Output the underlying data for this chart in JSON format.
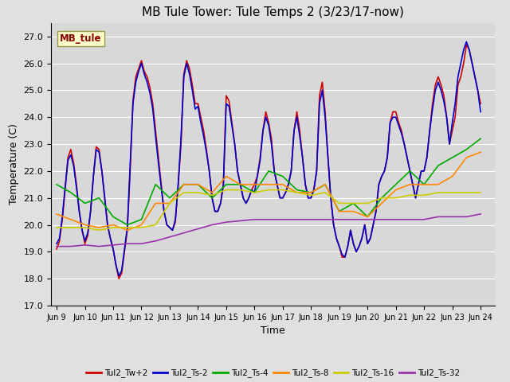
{
  "title": "MB Tule Tower: Tule Temps 2 (3/23/17-now)",
  "xlabel": "Time",
  "ylabel": "Temperature (C)",
  "ylim": [
    17.0,
    27.5
  ],
  "yticks": [
    17.0,
    18.0,
    19.0,
    20.0,
    21.0,
    22.0,
    23.0,
    24.0,
    25.0,
    26.0,
    27.0
  ],
  "xlim_min": -0.2,
  "xlim_max": 15.5,
  "xtick_labels": [
    "Jun 9",
    "Jun 10",
    "Jun 11",
    "Jun 12",
    "Jun 13",
    "Jun 14",
    "Jun 15",
    "Jun 16",
    "Jun 17",
    "Jun 18",
    "Jun 19",
    "Jun 20",
    "Jun 21",
    "Jun 22",
    "Jun 23",
    "Jun 24"
  ],
  "xtick_positions": [
    0,
    1,
    2,
    3,
    4,
    5,
    6,
    7,
    8,
    9,
    10,
    11,
    12,
    13,
    14,
    15
  ],
  "fig_bg": "#e0e0e0",
  "ax_bg": "#d8d8d8",
  "grid_color": "#ffffff",
  "series": [
    {
      "label": "Tul2_Tw+2",
      "color": "#cc0000",
      "lw": 1.2,
      "x": [
        0.0,
        0.1,
        0.2,
        0.3,
        0.4,
        0.5,
        0.6,
        0.7,
        0.8,
        0.9,
        1.0,
        1.1,
        1.2,
        1.3,
        1.4,
        1.5,
        1.6,
        1.7,
        1.8,
        1.9,
        2.0,
        2.1,
        2.2,
        2.3,
        2.4,
        2.5,
        2.6,
        2.7,
        2.8,
        2.9,
        3.0,
        3.1,
        3.2,
        3.3,
        3.4,
        3.5,
        3.6,
        3.7,
        3.8,
        3.9,
        4.0,
        4.1,
        4.2,
        4.3,
        4.4,
        4.5,
        4.6,
        4.7,
        4.8,
        4.9,
        5.0,
        5.1,
        5.2,
        5.3,
        5.4,
        5.5,
        5.6,
        5.7,
        5.8,
        5.9,
        6.0,
        6.1,
        6.2,
        6.3,
        6.4,
        6.5,
        6.6,
        6.7,
        6.8,
        6.9,
        7.0,
        7.1,
        7.2,
        7.3,
        7.4,
        7.5,
        7.6,
        7.7,
        7.8,
        7.9,
        8.0,
        8.1,
        8.2,
        8.3,
        8.4,
        8.5,
        8.6,
        8.7,
        8.8,
        8.9,
        9.0,
        9.1,
        9.2,
        9.3,
        9.4,
        9.5,
        9.6,
        9.7,
        9.8,
        9.9,
        10.0,
        10.1,
        10.2,
        10.3,
        10.4,
        10.5,
        10.6,
        10.7,
        10.8,
        10.9,
        11.0,
        11.1,
        11.2,
        11.3,
        11.4,
        11.5,
        11.6,
        11.7,
        11.8,
        11.9,
        12.0,
        12.1,
        12.2,
        12.3,
        12.4,
        12.5,
        12.6,
        12.7,
        12.8,
        12.9,
        13.0,
        13.1,
        13.2,
        13.3,
        13.4,
        13.5,
        13.6,
        13.7,
        13.8,
        13.9,
        14.0,
        14.1,
        14.2,
        14.3,
        14.4,
        14.5,
        14.6,
        14.7,
        14.8,
        14.9,
        15.0
      ],
      "y": [
        19.1,
        19.4,
        20.2,
        21.3,
        22.5,
        22.8,
        22.3,
        21.5,
        20.5,
        19.8,
        19.3,
        19.6,
        20.5,
        21.8,
        22.9,
        22.8,
        22.0,
        21.0,
        20.0,
        19.5,
        19.1,
        18.5,
        18.0,
        18.2,
        19.0,
        19.8,
        22.0,
        24.6,
        25.5,
        25.8,
        26.1,
        25.7,
        25.5,
        25.1,
        24.5,
        23.5,
        22.5,
        21.5,
        20.5,
        20.0,
        19.9,
        19.8,
        20.1,
        21.5,
        23.0,
        25.6,
        26.1,
        25.8,
        25.2,
        24.5,
        24.5,
        24.0,
        23.5,
        22.8,
        22.0,
        21.0,
        20.5,
        20.5,
        20.8,
        21.5,
        24.8,
        24.6,
        23.8,
        23.0,
        22.0,
        21.5,
        21.0,
        20.8,
        21.0,
        21.3,
        21.5,
        21.8,
        22.5,
        23.5,
        24.2,
        23.8,
        23.2,
        22.0,
        21.5,
        21.0,
        21.0,
        21.2,
        21.5,
        22.0,
        23.5,
        24.2,
        23.5,
        22.5,
        21.5,
        21.0,
        21.0,
        21.3,
        22.0,
        24.8,
        25.3,
        24.2,
        22.5,
        21.0,
        20.0,
        19.5,
        19.2,
        18.8,
        18.8,
        19.2,
        19.8,
        19.3,
        19.0,
        19.2,
        19.5,
        20.0,
        19.3,
        19.5,
        20.0,
        20.5,
        21.5,
        21.8,
        22.0,
        22.5,
        23.8,
        24.2,
        24.2,
        23.8,
        23.5,
        23.0,
        22.5,
        22.0,
        21.5,
        21.0,
        21.5,
        22.0,
        22.0,
        22.5,
        23.5,
        24.5,
        25.2,
        25.5,
        25.2,
        24.8,
        24.0,
        23.0,
        23.5,
        24.0,
        25.2,
        25.5,
        26.0,
        26.7,
        26.5,
        26.0,
        25.5,
        25.0,
        24.5
      ]
    },
    {
      "label": "Tul2_Ts-2",
      "color": "#0000cc",
      "lw": 1.2,
      "x": [
        0.0,
        0.1,
        0.2,
        0.3,
        0.4,
        0.5,
        0.6,
        0.7,
        0.8,
        0.9,
        1.0,
        1.1,
        1.2,
        1.3,
        1.4,
        1.5,
        1.6,
        1.7,
        1.8,
        1.9,
        2.0,
        2.1,
        2.2,
        2.3,
        2.4,
        2.5,
        2.6,
        2.7,
        2.8,
        2.9,
        3.0,
        3.1,
        3.2,
        3.3,
        3.4,
        3.5,
        3.6,
        3.7,
        3.8,
        3.9,
        4.0,
        4.1,
        4.2,
        4.3,
        4.4,
        4.5,
        4.6,
        4.7,
        4.8,
        4.9,
        5.0,
        5.1,
        5.2,
        5.3,
        5.4,
        5.5,
        5.6,
        5.7,
        5.8,
        5.9,
        6.0,
        6.1,
        6.2,
        6.3,
        6.4,
        6.5,
        6.6,
        6.7,
        6.8,
        6.9,
        7.0,
        7.1,
        7.2,
        7.3,
        7.4,
        7.5,
        7.6,
        7.7,
        7.8,
        7.9,
        8.0,
        8.1,
        8.2,
        8.3,
        8.4,
        8.5,
        8.6,
        8.7,
        8.8,
        8.9,
        9.0,
        9.1,
        9.2,
        9.3,
        9.4,
        9.5,
        9.6,
        9.7,
        9.8,
        9.9,
        10.0,
        10.1,
        10.2,
        10.3,
        10.4,
        10.5,
        10.6,
        10.7,
        10.8,
        10.9,
        11.0,
        11.1,
        11.2,
        11.3,
        11.4,
        11.5,
        11.6,
        11.7,
        11.8,
        11.9,
        12.0,
        12.1,
        12.2,
        12.3,
        12.4,
        12.5,
        12.6,
        12.7,
        12.8,
        12.9,
        13.0,
        13.1,
        13.2,
        13.3,
        13.4,
        13.5,
        13.6,
        13.7,
        13.8,
        13.9,
        14.0,
        14.1,
        14.2,
        14.3,
        14.4,
        14.5,
        14.6,
        14.7,
        14.8,
        14.9,
        15.0
      ],
      "y": [
        19.3,
        19.5,
        20.3,
        21.4,
        22.4,
        22.6,
        22.2,
        21.4,
        20.5,
        19.8,
        19.4,
        19.7,
        20.5,
        21.8,
        22.8,
        22.7,
        22.0,
        21.0,
        20.0,
        19.5,
        19.1,
        18.5,
        18.1,
        18.3,
        19.1,
        19.9,
        22.2,
        24.5,
        25.3,
        25.7,
        26.0,
        25.6,
        25.3,
        24.9,
        24.3,
        23.3,
        22.3,
        21.4,
        20.5,
        20.0,
        19.9,
        19.8,
        20.2,
        21.5,
        23.2,
        25.5,
        26.0,
        25.6,
        25.0,
        24.3,
        24.4,
        23.8,
        23.3,
        22.7,
        22.0,
        21.0,
        20.5,
        20.5,
        20.8,
        21.5,
        24.5,
        24.4,
        23.7,
        23.0,
        22.0,
        21.5,
        21.0,
        20.8,
        21.0,
        21.3,
        21.2,
        21.8,
        22.4,
        23.5,
        24.0,
        23.7,
        23.0,
        22.0,
        21.5,
        21.0,
        21.0,
        21.2,
        21.5,
        22.0,
        23.5,
        24.0,
        23.3,
        22.5,
        21.5,
        21.0,
        21.0,
        21.3,
        22.0,
        24.5,
        25.0,
        24.0,
        22.5,
        21.0,
        20.0,
        19.5,
        19.2,
        18.9,
        18.8,
        19.2,
        19.8,
        19.3,
        19.0,
        19.2,
        19.5,
        20.0,
        19.3,
        19.5,
        20.0,
        20.5,
        21.5,
        21.8,
        22.0,
        22.5,
        23.8,
        24.0,
        24.0,
        23.7,
        23.4,
        23.0,
        22.5,
        22.0,
        21.5,
        21.0,
        21.5,
        22.0,
        22.0,
        22.5,
        23.5,
        24.3,
        25.0,
        25.3,
        25.0,
        24.6,
        24.0,
        23.0,
        23.8,
        24.5,
        25.5,
        26.0,
        26.5,
        26.8,
        26.5,
        26.0,
        25.5,
        25.0,
        24.2
      ]
    },
    {
      "label": "Tul2_Ts-4",
      "color": "#00aa00",
      "lw": 1.2,
      "x": [
        0.0,
        0.5,
        1.0,
        1.5,
        2.0,
        2.5,
        3.0,
        3.5,
        4.0,
        4.5,
        5.0,
        5.5,
        6.0,
        6.5,
        7.0,
        7.5,
        8.0,
        8.5,
        9.0,
        9.5,
        10.0,
        10.5,
        11.0,
        11.5,
        12.0,
        12.5,
        13.0,
        13.5,
        14.0,
        14.5,
        15.0
      ],
      "y": [
        21.5,
        21.2,
        20.8,
        21.0,
        20.3,
        20.0,
        20.2,
        21.5,
        21.0,
        21.5,
        21.5,
        21.0,
        21.5,
        21.5,
        21.2,
        22.0,
        21.8,
        21.3,
        21.2,
        21.5,
        20.5,
        20.8,
        20.3,
        21.0,
        21.5,
        22.0,
        21.5,
        22.2,
        22.5,
        22.8,
        23.2
      ]
    },
    {
      "label": "Tul2_Ts-8",
      "color": "#ff8800",
      "lw": 1.2,
      "x": [
        0.0,
        0.5,
        1.0,
        1.5,
        2.0,
        2.5,
        3.0,
        3.5,
        4.0,
        4.5,
        5.0,
        5.5,
        6.0,
        6.5,
        7.0,
        7.5,
        8.0,
        8.5,
        9.0,
        9.5,
        10.0,
        10.5,
        11.0,
        11.5,
        12.0,
        12.5,
        13.0,
        13.5,
        14.0,
        14.5,
        15.0
      ],
      "y": [
        20.4,
        20.2,
        20.0,
        19.9,
        20.0,
        19.8,
        20.0,
        20.8,
        20.8,
        21.5,
        21.5,
        21.2,
        21.8,
        21.5,
        21.5,
        21.5,
        21.5,
        21.2,
        21.2,
        21.5,
        20.5,
        20.5,
        20.3,
        20.8,
        21.3,
        21.5,
        21.5,
        21.5,
        21.8,
        22.5,
        22.7
      ]
    },
    {
      "label": "Tul2_Ts-16",
      "color": "#cccc00",
      "lw": 1.2,
      "x": [
        0.0,
        0.5,
        1.0,
        1.5,
        2.0,
        2.5,
        3.0,
        3.5,
        4.0,
        4.5,
        5.0,
        5.5,
        6.0,
        6.5,
        7.0,
        7.5,
        8.0,
        8.5,
        9.0,
        9.5,
        10.0,
        10.5,
        11.0,
        11.5,
        12.0,
        12.5,
        13.0,
        13.5,
        14.0,
        14.5,
        15.0
      ],
      "y": [
        19.9,
        19.9,
        19.9,
        19.8,
        19.9,
        19.9,
        19.9,
        20.0,
        20.8,
        21.2,
        21.2,
        21.1,
        21.3,
        21.3,
        21.2,
        21.3,
        21.3,
        21.2,
        21.1,
        21.2,
        20.8,
        20.8,
        20.8,
        21.0,
        21.0,
        21.1,
        21.1,
        21.2,
        21.2,
        21.2,
        21.2
      ]
    },
    {
      "label": "Tul2_Ts-32",
      "color": "#9933aa",
      "lw": 1.2,
      "x": [
        0.0,
        0.5,
        1.0,
        1.5,
        2.0,
        2.5,
        3.0,
        3.5,
        4.0,
        4.5,
        5.0,
        5.5,
        6.0,
        6.5,
        7.0,
        7.5,
        8.0,
        8.5,
        9.0,
        9.5,
        10.0,
        10.5,
        11.0,
        11.5,
        12.0,
        12.5,
        13.0,
        13.5,
        14.0,
        14.5,
        15.0
      ],
      "y": [
        19.2,
        19.2,
        19.25,
        19.2,
        19.25,
        19.3,
        19.3,
        19.4,
        19.55,
        19.7,
        19.85,
        20.0,
        20.1,
        20.15,
        20.2,
        20.2,
        20.2,
        20.2,
        20.2,
        20.2,
        20.2,
        20.2,
        20.2,
        20.2,
        20.2,
        20.2,
        20.2,
        20.3,
        20.3,
        20.3,
        20.4
      ]
    }
  ],
  "inset_label": "MB_tule",
  "inset_label_color": "#880000",
  "inset_box_facecolor": "#ffffcc",
  "inset_box_edgecolor": "#999944",
  "title_fontsize": 11,
  "axis_label_fontsize": 9,
  "tick_fontsize": 8
}
